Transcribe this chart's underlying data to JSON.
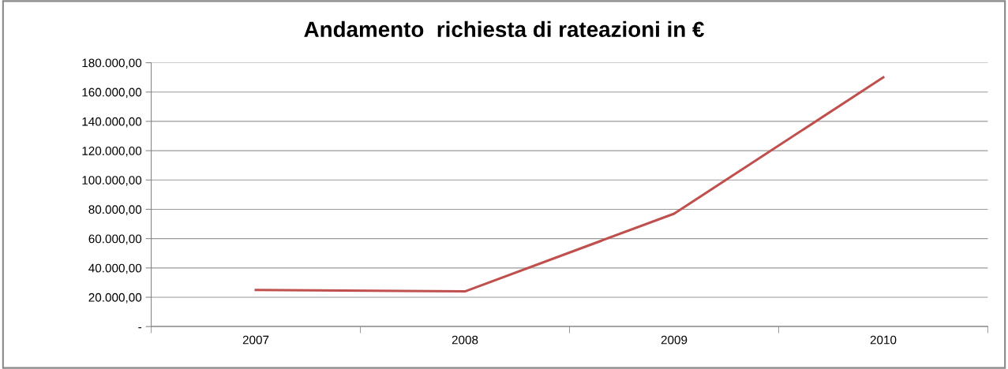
{
  "chart_data": {
    "type": "line",
    "title": "Andamento  richiesta di rateazioni in €",
    "categories": [
      "2007",
      "2008",
      "2009",
      "2010"
    ],
    "series": [
      {
        "color": "#c0504d",
        "values": [
          25000,
          24000,
          77000,
          170000
        ]
      }
    ],
    "ylim": [
      0,
      180000
    ],
    "yticks": [
      {
        "value": 0,
        "label": "-"
      },
      {
        "value": 20000,
        "label": "20.000,00"
      },
      {
        "value": 40000,
        "label": "40.000,00"
      },
      {
        "value": 60000,
        "label": "60.000,00"
      },
      {
        "value": 80000,
        "label": "80.000,00"
      },
      {
        "value": 100000,
        "label": "100.000,00"
      },
      {
        "value": 120000,
        "label": "120.000,00"
      },
      {
        "value": 140000,
        "label": "140.000,00"
      },
      {
        "value": 160000,
        "label": "160.000,00"
      },
      {
        "value": 180000,
        "label": "180.000,00"
      }
    ],
    "grid": "y",
    "marker": "none",
    "line_style": "solid"
  }
}
